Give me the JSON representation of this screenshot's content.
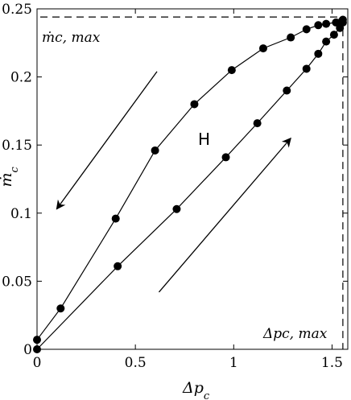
{
  "chart_data": {
    "type": "line",
    "xlabel": "Δp_c",
    "ylabel": "ṁ_c",
    "xlim": [
      0,
      1.58
    ],
    "ylim": [
      0,
      0.25
    ],
    "xticks": [
      0,
      0.5,
      1,
      1.5
    ],
    "yticks": [
      0,
      0.05,
      0.1,
      0.15,
      0.2,
      0.25
    ],
    "xtick_labels": [
      "0",
      "0.5",
      "1",
      "1.5"
    ],
    "ytick_labels": [
      "0",
      "0.05",
      "0.1",
      "0.15",
      "0.2",
      "0.25"
    ],
    "grid": false,
    "series": [
      {
        "points": [
          [
            0.0,
            0.007
          ],
          [
            0.12,
            0.03
          ],
          [
            0.4,
            0.096
          ],
          [
            0.6,
            0.146
          ],
          [
            0.8,
            0.18
          ],
          [
            0.99,
            0.205
          ],
          [
            1.15,
            0.221
          ],
          [
            1.29,
            0.229
          ],
          [
            1.37,
            0.235
          ],
          [
            1.43,
            0.238
          ],
          [
            1.47,
            0.239
          ],
          [
            1.52,
            0.24
          ],
          [
            1.55,
            0.241
          ],
          [
            1.555,
            0.242
          ]
        ]
      },
      {
        "points": [
          [
            0.0,
            0.0
          ],
          [
            0.41,
            0.061
          ],
          [
            0.71,
            0.103
          ],
          [
            0.96,
            0.141
          ],
          [
            1.12,
            0.166
          ],
          [
            1.27,
            0.19
          ],
          [
            1.37,
            0.206
          ],
          [
            1.43,
            0.217
          ],
          [
            1.47,
            0.226
          ],
          [
            1.51,
            0.231
          ],
          [
            1.54,
            0.236
          ],
          [
            1.555,
            0.24
          ]
        ]
      }
    ],
    "max_lines": {
      "x": 1.555,
      "y": 0.244
    },
    "annotations": {
      "max_mdot": "ṁc, max",
      "max_dp": "Δpc, max",
      "hysteresis": "H"
    },
    "arrows": [
      {
        "from": [
          0.61,
          0.204
        ],
        "to": [
          0.1,
          0.103
        ]
      },
      {
        "from": [
          0.62,
          0.042
        ],
        "to": [
          1.29,
          0.155
        ]
      }
    ],
    "colors": {
      "line": "#000000",
      "marker": "#000000",
      "axis": "#000000"
    }
  }
}
